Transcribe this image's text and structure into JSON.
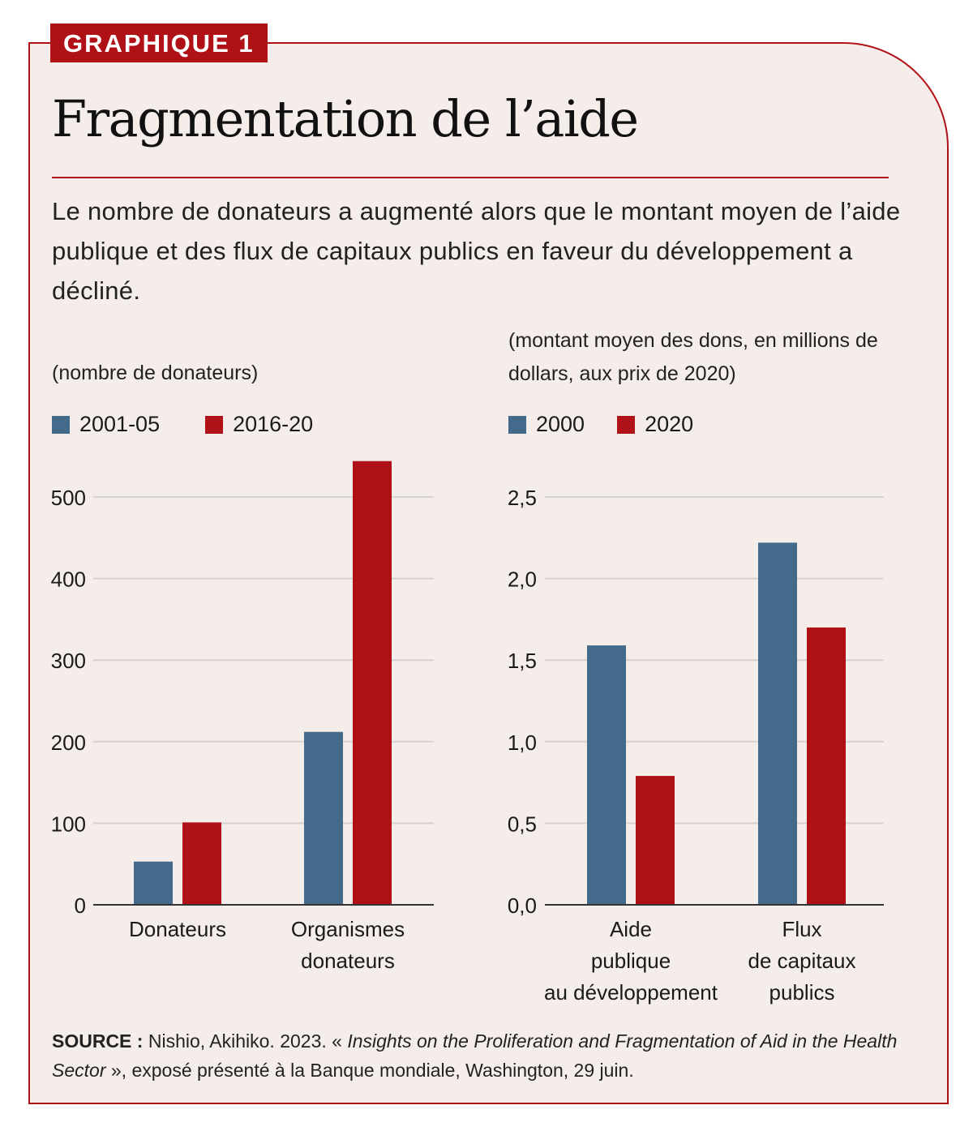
{
  "tag": "GRAPHIQUE 1",
  "title": "Fragmentation de l’aide",
  "subtitle": "Le nombre de donateurs a augmenté alors que le montant moyen de l’aide publique et des flux de capitaux publics en faveur du développement a décliné.",
  "source": {
    "label": "SOURCE :",
    "text1": " Nishio, Akihiko. 2023. « ",
    "italic1": "Insights on the Proliferation and Fragmentation of Aid in the Health Sector",
    "text2": " », exposé présenté à la Banque mondiale, Washington, 29 juin."
  },
  "colors": {
    "blue": "#436a8a",
    "red": "#b01117",
    "grid": "#d6d2d0",
    "axis": "#333333"
  },
  "chart_data": [
    {
      "type": "bar",
      "ylabel": "(nombre de donateurs)",
      "categories": [
        [
          "Donateurs"
        ],
        [
          "Organismes",
          "donateurs"
        ]
      ],
      "series": [
        {
          "name": "2001-05",
          "color": "#436a8a",
          "values": [
            53,
            212
          ]
        },
        {
          "name": "2016-20",
          "color": "#b01117",
          "values": [
            101,
            544
          ]
        }
      ],
      "ylim": [
        0,
        500
      ],
      "yticks": [
        0,
        100,
        200,
        300,
        400,
        500
      ],
      "ytick_labels": [
        "0",
        "100",
        "200",
        "300",
        "400",
        "500"
      ],
      "grid": true,
      "legend": "top-left"
    },
    {
      "type": "bar",
      "ylabel": "(montant moyen des dons, en millions de dollars, aux prix de 2020)",
      "categories": [
        [
          "Aide",
          "publique",
          "au développement"
        ],
        [
          "Flux",
          "de capitaux",
          "publics"
        ]
      ],
      "series": [
        {
          "name": "2000",
          "color": "#436a8a",
          "values": [
            1.59,
            2.22
          ]
        },
        {
          "name": "2020",
          "color": "#b01117",
          "values": [
            0.79,
            1.7
          ]
        }
      ],
      "ylim": [
        0,
        2.5
      ],
      "yticks": [
        0,
        0.5,
        1,
        1.5,
        2,
        2.5
      ],
      "ytick_labels": [
        "0,0",
        "0,5",
        "1,0",
        "1,5",
        "2,0",
        "2,5"
      ],
      "grid": true,
      "legend": "top-left"
    }
  ]
}
